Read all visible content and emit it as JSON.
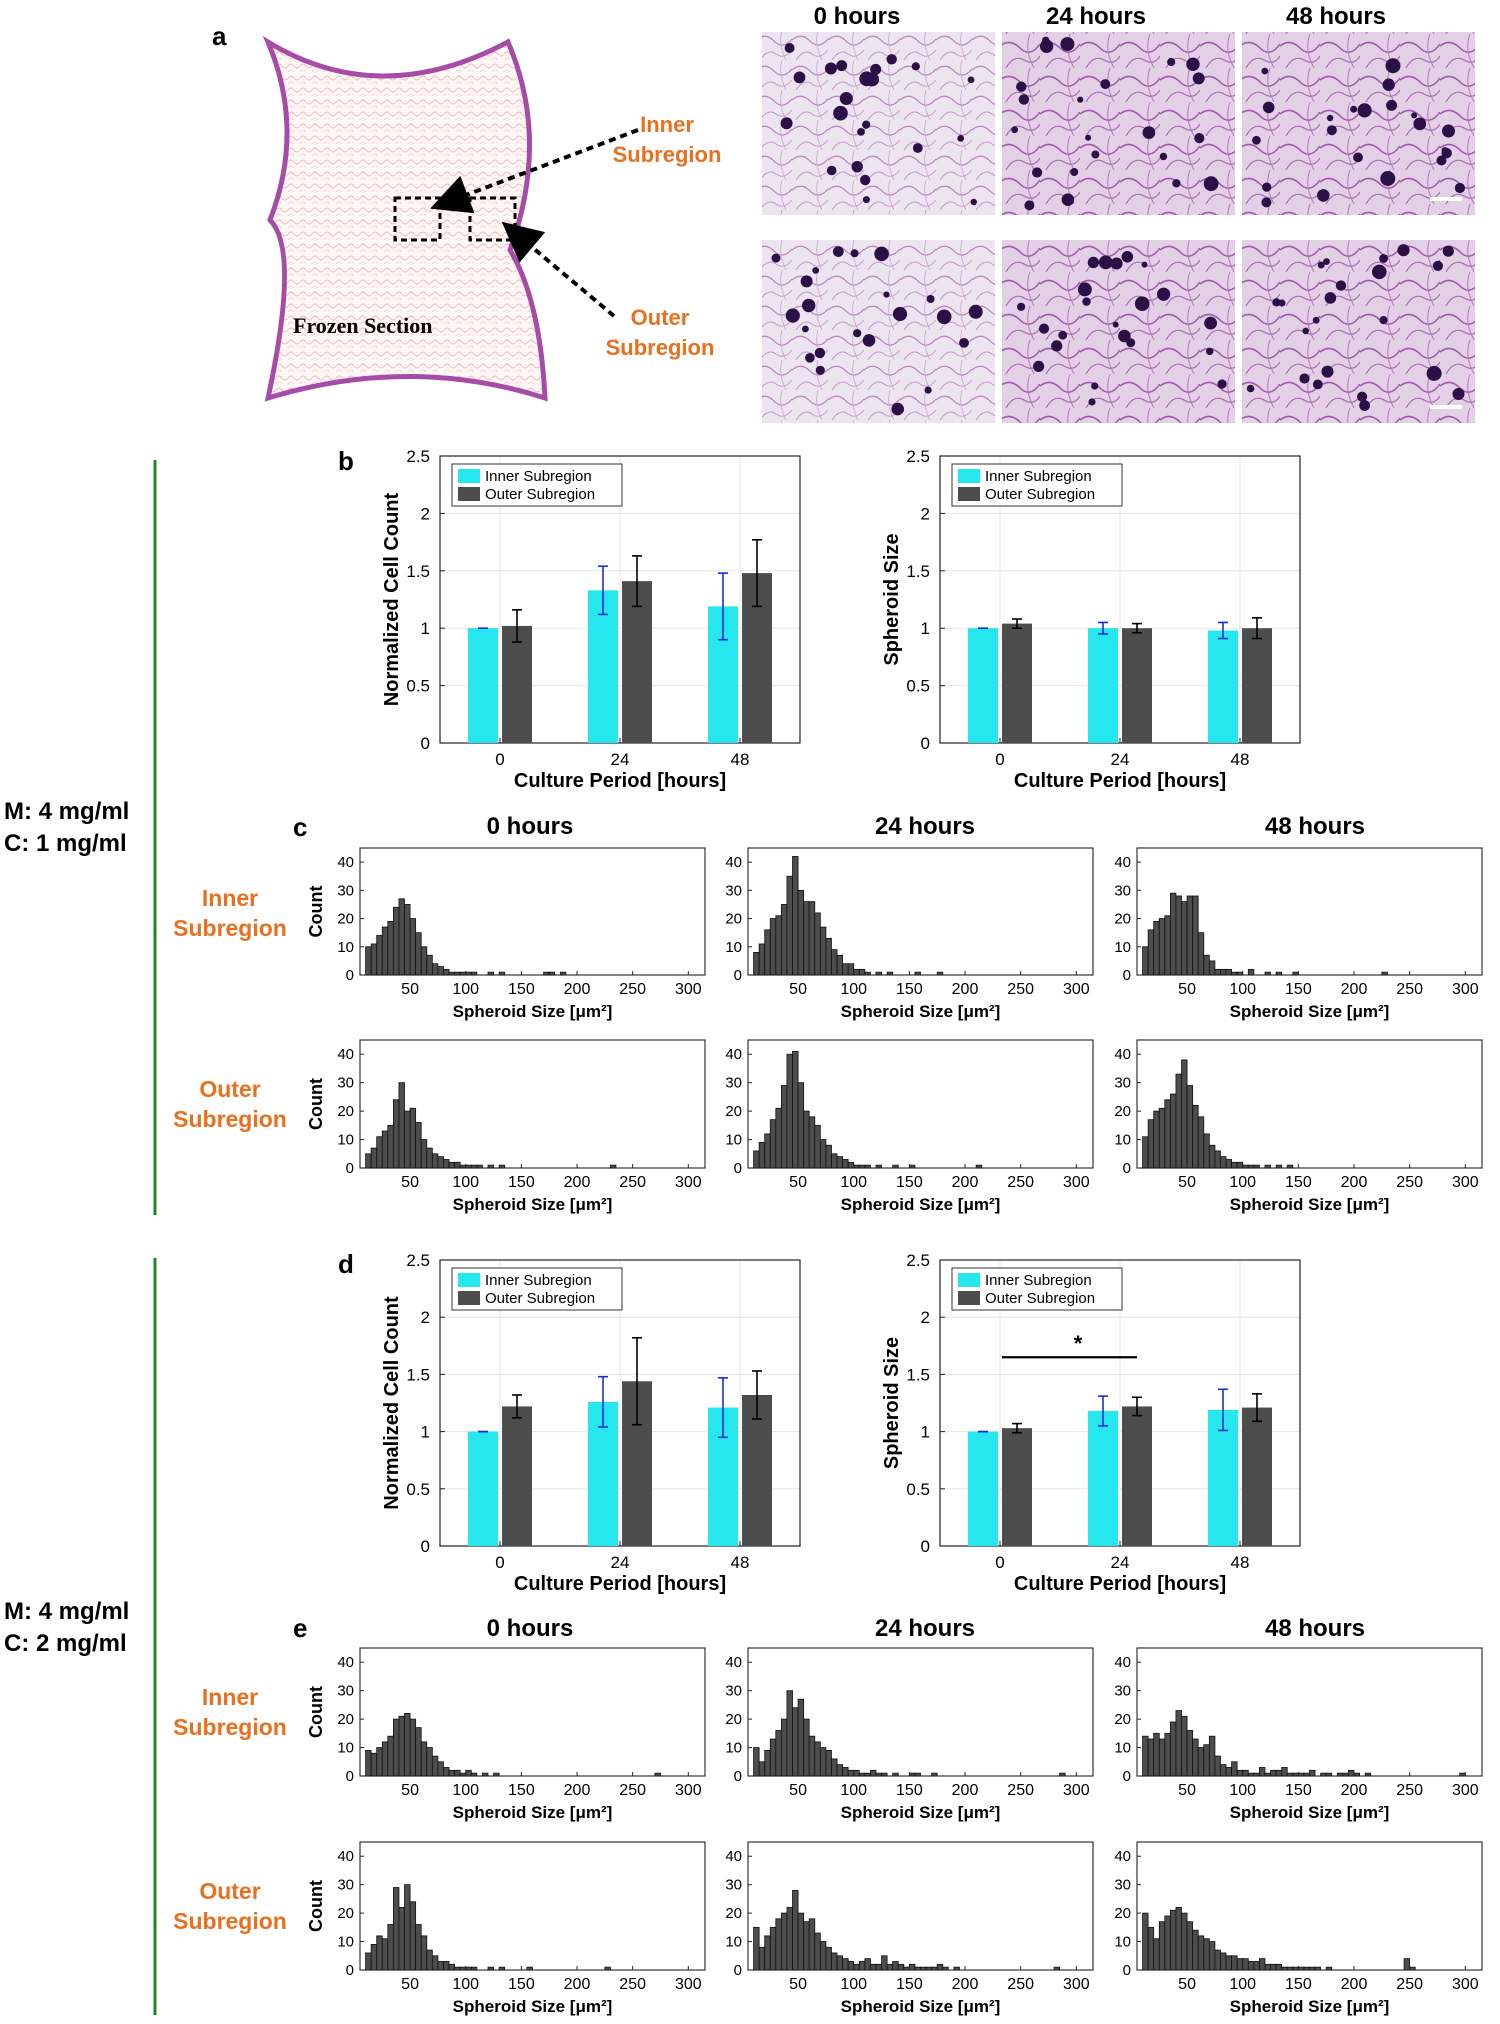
{
  "panel_labels": {
    "a": "a",
    "b": "b",
    "c": "c",
    "d": "d",
    "e": "e"
  },
  "panel_a": {
    "section_label": "Frozen Section",
    "inner_label_line1": "Inner",
    "inner_label_line2": "Subregion",
    "outer_label_line1": "Outer",
    "outer_label_line2": "Subregion",
    "time_headers": [
      "0 hours",
      "24 hours",
      "48 hours"
    ],
    "micrograph_count": 6
  },
  "condition_labels": {
    "group1_line1": "M: 4 mg/ml",
    "group1_line2": "C: 1 mg/ml",
    "group2_line1": "M: 4 mg/ml",
    "group2_line2": "C: 2 mg/ml"
  },
  "colors": {
    "inner": "#26e6ee",
    "outer": "#4d4d4d",
    "error_inner": "#1a2fd6",
    "error_outer": "#000000",
    "accent_orange": "#e8701f",
    "bracket_green": "#1f8a1f",
    "section_outline": "#a64ca6"
  },
  "hist_row_labels": {
    "inner_line1": "Inner",
    "inner_line2": "Subregion",
    "outer_line1": "Outer",
    "outer_line2": "Subregion"
  },
  "hist_titles": [
    "0 hours",
    "24 hours",
    "48 hours"
  ],
  "significance_marker": "*",
  "chart_data": [
    {
      "id": "b-left",
      "type": "bar",
      "categories": [
        "0",
        "24",
        "48"
      ],
      "series": [
        {
          "name": "Inner Subregion",
          "values": [
            1.0,
            1.33,
            1.19
          ],
          "errors": [
            0.0,
            0.21,
            0.29
          ]
        },
        {
          "name": "Outer Subregion",
          "values": [
            1.02,
            1.41,
            1.48
          ],
          "errors": [
            0.14,
            0.22,
            0.29
          ]
        }
      ],
      "xlabel": "Culture Period [hours]",
      "ylabel": "Normalized Cell Count",
      "ylim": [
        0,
        2.5
      ],
      "yticks": [
        "0",
        "0.5",
        "1",
        "1.5",
        "2",
        "2.5"
      ],
      "grid": true,
      "legend": "top-left"
    },
    {
      "id": "b-right",
      "type": "bar",
      "categories": [
        "0",
        "24",
        "48"
      ],
      "series": [
        {
          "name": "Inner Subregion",
          "values": [
            1.0,
            1.0,
            0.98
          ],
          "errors": [
            0.0,
            0.05,
            0.07
          ]
        },
        {
          "name": "Outer Subregion",
          "values": [
            1.04,
            1.0,
            1.0
          ],
          "errors": [
            0.04,
            0.04,
            0.09
          ]
        }
      ],
      "xlabel": "Culture Period [hours]",
      "ylabel": "Spheroid Size",
      "ylim": [
        0,
        2.5
      ],
      "yticks": [
        "0",
        "0.5",
        "1",
        "1.5",
        "2",
        "2.5"
      ],
      "grid": true,
      "legend": "top-left"
    },
    {
      "id": "d-left",
      "type": "bar",
      "categories": [
        "0",
        "24",
        "48"
      ],
      "series": [
        {
          "name": "Inner Subregion",
          "values": [
            1.0,
            1.26,
            1.21
          ],
          "errors": [
            0.0,
            0.22,
            0.26
          ]
        },
        {
          "name": "Outer Subregion",
          "values": [
            1.22,
            1.44,
            1.32
          ],
          "errors": [
            0.1,
            0.38,
            0.21
          ]
        }
      ],
      "xlabel": "Culture Period [hours]",
      "ylabel": "Normalized Cell Count",
      "ylim": [
        0,
        2.5
      ],
      "yticks": [
        "0",
        "0.5",
        "1",
        "1.5",
        "2",
        "2.5"
      ],
      "grid": true,
      "legend": "top-left"
    },
    {
      "id": "d-right",
      "type": "bar",
      "categories": [
        "0",
        "24",
        "48"
      ],
      "series": [
        {
          "name": "Inner Subregion",
          "values": [
            1.0,
            1.18,
            1.19
          ],
          "errors": [
            0.0,
            0.13,
            0.18
          ]
        },
        {
          "name": "Outer Subregion",
          "values": [
            1.03,
            1.22,
            1.21
          ],
          "errors": [
            0.04,
            0.08,
            0.12
          ]
        }
      ],
      "xlabel": "Culture Period [hours]",
      "ylabel": "Spheroid Size",
      "ylim": [
        0,
        2.5
      ],
      "yticks": [
        "0",
        "0.5",
        "1",
        "1.5",
        "2",
        "2.5"
      ],
      "grid": true,
      "legend": "top-left",
      "significance": {
        "from": "0",
        "to": "24",
        "level": 1.65,
        "marker": "*"
      }
    },
    {
      "id": "c-inner-0",
      "type": "histogram",
      "title": "0 hours",
      "xlabel": "Spheroid Size [μm²]",
      "ylabel": "Count",
      "xlim": [
        5,
        315
      ],
      "ylim": [
        0,
        45
      ],
      "xticks": [
        50,
        100,
        150,
        200,
        250,
        300
      ],
      "yticks": [
        0,
        10,
        20,
        30,
        40
      ],
      "bin_start": 10,
      "bin_width": 5,
      "counts": [
        10,
        11,
        14,
        17,
        19,
        24,
        27,
        25,
        20,
        15,
        10,
        7,
        4,
        3,
        2,
        1,
        1,
        1,
        1,
        1,
        0,
        0,
        1,
        0,
        1,
        0,
        0,
        0,
        0,
        0,
        0,
        0,
        1,
        1,
        0,
        1
      ]
    },
    {
      "id": "c-inner-24",
      "type": "histogram",
      "title": "24 hours",
      "xlabel": "Spheroid Size [μm²]",
      "ylabel": "Count",
      "xlim": [
        5,
        315
      ],
      "ylim": [
        0,
        45
      ],
      "xticks": [
        50,
        100,
        150,
        200,
        250,
        300
      ],
      "yticks": [
        0,
        10,
        20,
        30,
        40
      ],
      "bin_start": 10,
      "bin_width": 5,
      "counts": [
        8,
        11,
        16,
        20,
        21,
        25,
        35,
        42,
        30,
        26,
        26,
        22,
        17,
        13,
        9,
        7,
        4,
        4,
        2,
        2,
        1,
        0,
        1,
        0,
        1,
        0,
        0,
        0,
        0,
        1,
        0,
        0,
        0,
        1
      ]
    },
    {
      "id": "c-inner-48",
      "type": "histogram",
      "title": "48 hours",
      "xlabel": "Spheroid Size [μm²]",
      "ylabel": "Count",
      "xlim": [
        5,
        315
      ],
      "ylim": [
        0,
        45
      ],
      "xticks": [
        50,
        100,
        150,
        200,
        250,
        300
      ],
      "yticks": [
        0,
        10,
        20,
        30,
        40
      ],
      "bin_start": 10,
      "bin_width": 5,
      "counts": [
        10,
        16,
        19,
        20,
        21,
        29,
        28,
        26,
        28,
        28,
        15,
        7,
        5,
        2,
        2,
        2,
        1,
        1,
        0,
        2,
        0,
        0,
        1,
        0,
        1,
        0,
        0,
        1,
        0,
        0,
        0,
        0,
        0,
        0,
        0,
        0,
        0,
        0,
        0,
        0,
        0,
        0,
        0,
        1
      ]
    },
    {
      "id": "c-outer-0",
      "type": "histogram",
      "title": "",
      "xlabel": "Spheroid Size [μm²]",
      "ylabel": "Count",
      "xlim": [
        5,
        315
      ],
      "ylim": [
        0,
        45
      ],
      "xticks": [
        50,
        100,
        150,
        200,
        250,
        300
      ],
      "yticks": [
        0,
        10,
        20,
        30,
        40
      ],
      "bin_start": 10,
      "bin_width": 5,
      "counts": [
        5,
        7,
        11,
        13,
        15,
        24,
        30,
        20,
        21,
        16,
        10,
        7,
        5,
        4,
        3,
        2,
        2,
        1,
        1,
        1,
        1,
        0,
        1,
        0,
        1,
        0,
        0,
        0,
        0,
        0,
        0,
        0,
        0,
        0,
        0,
        0,
        0,
        0,
        0,
        0,
        0,
        0,
        0,
        0,
        1
      ]
    },
    {
      "id": "c-outer-24",
      "type": "histogram",
      "title": "",
      "xlabel": "Spheroid Size [μm²]",
      "ylabel": "Count",
      "xlim": [
        5,
        315
      ],
      "ylim": [
        0,
        45
      ],
      "xticks": [
        50,
        100,
        150,
        200,
        250,
        300
      ],
      "yticks": [
        0,
        10,
        20,
        30,
        40
      ],
      "bin_start": 10,
      "bin_width": 5,
      "counts": [
        6,
        9,
        12,
        17,
        21,
        29,
        40,
        41,
        30,
        20,
        18,
        15,
        10,
        8,
        5,
        4,
        3,
        2,
        1,
        1,
        1,
        0,
        1,
        0,
        0,
        1,
        0,
        0,
        1,
        0,
        0,
        0,
        0,
        0,
        0,
        0,
        0,
        0,
        0,
        0,
        1
      ]
    },
    {
      "id": "c-outer-48",
      "type": "histogram",
      "title": "",
      "xlabel": "Spheroid Size [μm²]",
      "ylabel": "Count",
      "xlim": [
        5,
        315
      ],
      "ylim": [
        0,
        45
      ],
      "xticks": [
        50,
        100,
        150,
        200,
        250,
        300
      ],
      "yticks": [
        0,
        10,
        20,
        30,
        40
      ],
      "bin_start": 10,
      "bin_width": 5,
      "counts": [
        11,
        17,
        20,
        21,
        24,
        26,
        33,
        38,
        29,
        22,
        18,
        12,
        8,
        6,
        4,
        3,
        2,
        2,
        1,
        1,
        1,
        0,
        1,
        0,
        1,
        0,
        1,
        0,
        0,
        0,
        0,
        0,
        0,
        0,
        0,
        0,
        0,
        0,
        0,
        0
      ]
    },
    {
      "id": "e-inner-0",
      "type": "histogram",
      "title": "0 hours",
      "xlabel": "Spheroid Size [μm²]",
      "ylabel": "Count",
      "xlim": [
        5,
        315
      ],
      "ylim": [
        0,
        45
      ],
      "xticks": [
        50,
        100,
        150,
        200,
        250,
        300
      ],
      "yticks": [
        0,
        10,
        20,
        30,
        40
      ],
      "bin_start": 10,
      "bin_width": 5,
      "counts": [
        9,
        8,
        10,
        12,
        14,
        20,
        21,
        22,
        20,
        17,
        12,
        10,
        7,
        5,
        3,
        2,
        2,
        1,
        2,
        1,
        0,
        1,
        0,
        1,
        0,
        0,
        0,
        0,
        0,
        0,
        0,
        0,
        0,
        0,
        0,
        0,
        0,
        0,
        0,
        0,
        0,
        0,
        0,
        0,
        0,
        0,
        0,
        0,
        0,
        0,
        0,
        0,
        1
      ]
    },
    {
      "id": "e-inner-24",
      "type": "histogram",
      "title": "24 hours",
      "xlabel": "Spheroid Size [μm²]",
      "ylabel": "Count",
      "xlim": [
        5,
        315
      ],
      "ylim": [
        0,
        45
      ],
      "xticks": [
        50,
        100,
        150,
        200,
        250,
        300
      ],
      "yticks": [
        0,
        10,
        20,
        30,
        40
      ],
      "bin_start": 10,
      "bin_width": 5,
      "counts": [
        10,
        5,
        9,
        13,
        16,
        20,
        30,
        24,
        27,
        20,
        14,
        12,
        10,
        9,
        6,
        4,
        3,
        2,
        2,
        1,
        1,
        2,
        1,
        1,
        0,
        1,
        0,
        0,
        1,
        1,
        0,
        0,
        1,
        0,
        0,
        0,
        0,
        0,
        0,
        0,
        0,
        0,
        0,
        0,
        0,
        0,
        0,
        0,
        0,
        0,
        0,
        0,
        0,
        0,
        0,
        1
      ]
    },
    {
      "id": "e-inner-48",
      "type": "histogram",
      "title": "48 hours",
      "xlabel": "Spheroid Size [μm²]",
      "ylabel": "Count",
      "xlim": [
        5,
        315
      ],
      "ylim": [
        0,
        45
      ],
      "xticks": [
        50,
        100,
        150,
        200,
        250,
        300
      ],
      "yticks": [
        0,
        10,
        20,
        30,
        40
      ],
      "bin_start": 10,
      "bin_width": 5,
      "counts": [
        14,
        13,
        15,
        13,
        15,
        19,
        23,
        21,
        16,
        13,
        10,
        11,
        14,
        7,
        4,
        3,
        5,
        2,
        2,
        1,
        1,
        3,
        1,
        2,
        2,
        3,
        1,
        1,
        1,
        1,
        2,
        0,
        1,
        1,
        0,
        1,
        1,
        2,
        1,
        0,
        1,
        0,
        0,
        0,
        0,
        0,
        0,
        0,
        0,
        0,
        0,
        0,
        0,
        0,
        0,
        0,
        0,
        1
      ]
    },
    {
      "id": "e-outer-0",
      "type": "histogram",
      "title": "",
      "xlabel": "Spheroid Size [μm²]",
      "ylabel": "Count",
      "xlim": [
        5,
        315
      ],
      "ylim": [
        0,
        45
      ],
      "xticks": [
        50,
        100,
        150,
        200,
        250,
        300
      ],
      "yticks": [
        0,
        10,
        20,
        30,
        40
      ],
      "bin_start": 10,
      "bin_width": 5,
      "counts": [
        6,
        9,
        12,
        11,
        16,
        29,
        22,
        30,
        24,
        16,
        12,
        7,
        5,
        3,
        3,
        2,
        1,
        1,
        1,
        1,
        0,
        0,
        1,
        0,
        1,
        0,
        0,
        0,
        0,
        1,
        0,
        0,
        0,
        0,
        0,
        0,
        0,
        0,
        0,
        0,
        0,
        0,
        0,
        1
      ]
    },
    {
      "id": "e-outer-24",
      "type": "histogram",
      "title": "",
      "xlabel": "Spheroid Size [μm²]",
      "ylabel": "Count",
      "xlim": [
        5,
        315
      ],
      "ylim": [
        0,
        45
      ],
      "xticks": [
        50,
        100,
        150,
        200,
        250,
        300
      ],
      "yticks": [
        0,
        10,
        20,
        30,
        40
      ],
      "bin_start": 10,
      "bin_width": 5,
      "counts": [
        15,
        8,
        12,
        15,
        18,
        20,
        22,
        28,
        20,
        17,
        18,
        13,
        10,
        8,
        6,
        5,
        4,
        3,
        2,
        3,
        4,
        2,
        2,
        5,
        2,
        3,
        2,
        1,
        2,
        1,
        1,
        1,
        1,
        2,
        1,
        0,
        1,
        0,
        0,
        0,
        0,
        0,
        0,
        0,
        0,
        0,
        0,
        0,
        0,
        0,
        0,
        0,
        0,
        0,
        1
      ]
    },
    {
      "id": "e-outer-48",
      "type": "histogram",
      "title": "",
      "xlabel": "Spheroid Size [μm²]",
      "ylabel": "Count",
      "xlim": [
        5,
        315
      ],
      "ylim": [
        0,
        45
      ],
      "xticks": [
        50,
        100,
        150,
        200,
        250,
        300
      ],
      "yticks": [
        0,
        10,
        20,
        30,
        40
      ],
      "bin_start": 10,
      "bin_width": 5,
      "counts": [
        20,
        15,
        11,
        17,
        19,
        21,
        22,
        20,
        17,
        14,
        12,
        11,
        10,
        7,
        6,
        5,
        5,
        4,
        4,
        3,
        3,
        4,
        2,
        2,
        2,
        1,
        1,
        1,
        1,
        1,
        1,
        1,
        0,
        1,
        0,
        0,
        0,
        0,
        0,
        0,
        0,
        0,
        0,
        0,
        0,
        0,
        0,
        4,
        1
      ]
    }
  ]
}
